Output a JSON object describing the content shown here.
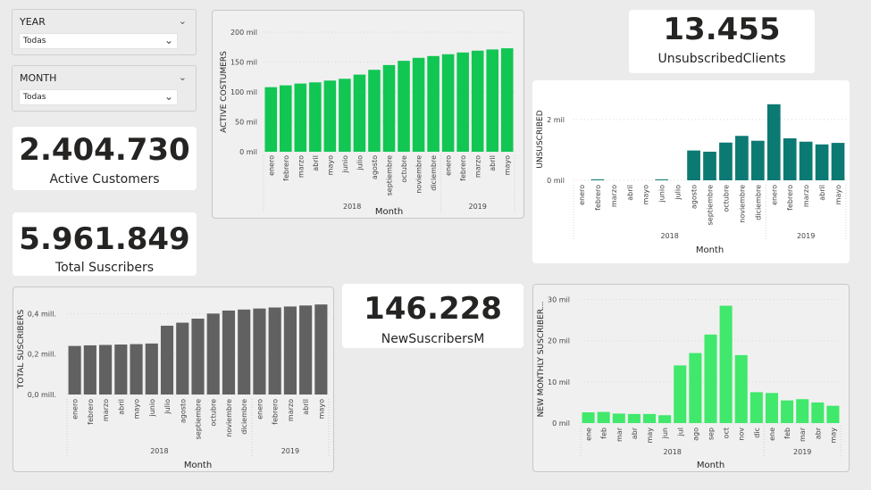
{
  "slicers": {
    "year": {
      "title": "YEAR",
      "value": "Todas"
    },
    "month": {
      "title": "MONTH",
      "value": "Todas"
    }
  },
  "kpis": {
    "active_customers": {
      "value": "2.404.730",
      "label": "Active Customers"
    },
    "total_suscribers": {
      "value": "5.961.849",
      "label": "Total Suscribers"
    },
    "new_suscribers": {
      "value": "146.228",
      "label": "NewSuscribersM"
    },
    "unsubscribed_clients": {
      "value": "13.455",
      "label": "UnsubscribedClients"
    }
  },
  "colors": {
    "active": "#11c653",
    "unsubscribed": "#0b7a73",
    "total": "#616161",
    "new_monthly": "#40e86b"
  },
  "chart_data": [
    {
      "id": "active",
      "type": "bar",
      "ylabel": "ACTIVE COSTUMERS",
      "xlabel": "Month",
      "yticks": [
        "0 mil",
        "50 mil",
        "100 mil",
        "150 mil",
        "200 mil"
      ],
      "ylim": [
        0,
        200000
      ],
      "categories": [
        "enero",
        "febrero",
        "marzo",
        "abril",
        "mayo",
        "junio",
        "julio",
        "agosto",
        "septiembre",
        "octubre",
        "noviembre",
        "diciembre",
        "enero",
        "febrero",
        "marzo",
        "abril",
        "mayo"
      ],
      "years": [
        {
          "label": "2018",
          "count": 12
        },
        {
          "label": "2019",
          "count": 5
        }
      ],
      "values": [
        108000,
        111000,
        114000,
        116000,
        119000,
        122000,
        129000,
        137000,
        145000,
        152000,
        157000,
        160000,
        163000,
        166000,
        169000,
        171000,
        173000
      ]
    },
    {
      "id": "unsubscribed",
      "type": "bar",
      "ylabel": "UNSUSCRIBED",
      "xlabel": "Month",
      "yticks": [
        "0 mil",
        "2 mil"
      ],
      "ylim": [
        0,
        2700
      ],
      "categories": [
        "enero",
        "febrero",
        "marzo",
        "abril",
        "mayo",
        "junio",
        "julio",
        "agosto",
        "septiembre",
        "octubre",
        "noviembre",
        "diciembre",
        "enero",
        "febrero",
        "marzo",
        "abril",
        "mayo"
      ],
      "years": [
        {
          "label": "2018",
          "count": 12
        },
        {
          "label": "2019",
          "count": 5
        }
      ],
      "values": [
        0,
        30,
        0,
        0,
        0,
        25,
        0,
        980,
        940,
        1240,
        1460,
        1300,
        2500,
        1380,
        1270,
        1180,
        1230
      ]
    },
    {
      "id": "total",
      "type": "bar",
      "ylabel": "TOTAL SUSCRIBERS",
      "xlabel": "Month",
      "yticks": [
        "0,0 mill.",
        "0,2 mill.",
        "0,4 mill."
      ],
      "ylim": [
        0,
        0.45
      ],
      "categories": [
        "enero",
        "febrero",
        "marzo",
        "abril",
        "mayo",
        "junio",
        "julio",
        "agosto",
        "septiembre",
        "octubre",
        "noviembre",
        "diciembre",
        "enero",
        "febrero",
        "marzo",
        "abril",
        "mayo"
      ],
      "years": [
        {
          "label": "2018",
          "count": 12
        },
        {
          "label": "2019",
          "count": 5
        }
      ],
      "values": [
        0.24,
        0.243,
        0.245,
        0.247,
        0.249,
        0.252,
        0.34,
        0.355,
        0.375,
        0.4,
        0.415,
        0.42,
        0.425,
        0.43,
        0.435,
        0.44,
        0.445
      ]
    },
    {
      "id": "new_monthly",
      "type": "bar",
      "ylabel": "NEW MONTHLY SUSCRIBER...",
      "xlabel": "Month",
      "yticks": [
        "0 mil",
        "10 mil",
        "20 mil",
        "30 mil"
      ],
      "ylim": [
        0,
        31000
      ],
      "categories": [
        "ene",
        "feb",
        "mar",
        "abr",
        "may",
        "jun",
        "jul",
        "ago",
        "sep",
        "oct",
        "nov",
        "dic",
        "ene",
        "feb",
        "mar",
        "abr",
        "may"
      ],
      "years": [
        {
          "label": "2018",
          "count": 12
        },
        {
          "label": "2019",
          "count": 5
        }
      ],
      "values": [
        2600,
        2700,
        2300,
        2200,
        2200,
        1900,
        14000,
        17000,
        21500,
        28500,
        16500,
        7500,
        7300,
        5500,
        5800,
        5000,
        4200
      ]
    }
  ]
}
